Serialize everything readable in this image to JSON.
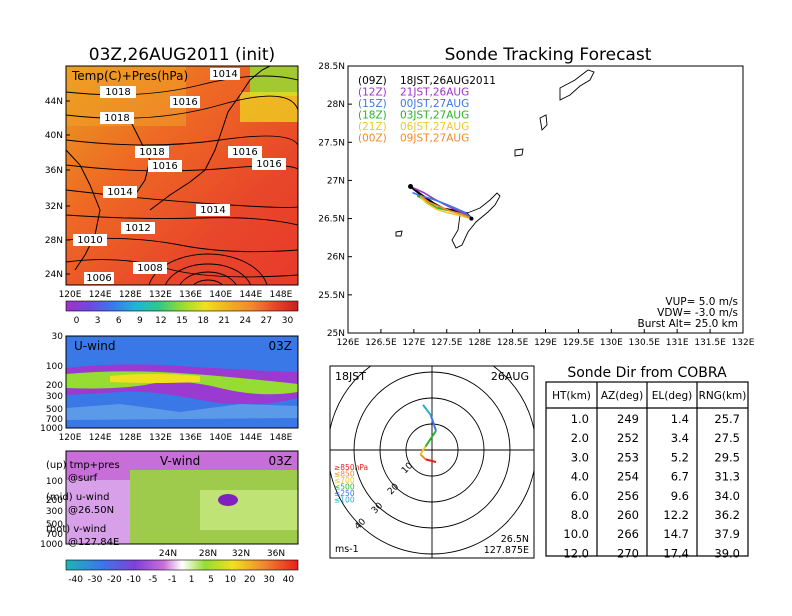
{
  "colors": {
    "warm_1": "#e8a020",
    "warm_2": "#ee6a24",
    "warm_3": "#e8472a",
    "warm_4": "#f08a30",
    "green": "#96dc32",
    "yellow": "#f0e020",
    "blue": "#3a78e8",
    "purple": "#a032c8",
    "magenta": "#c86ed8",
    "cyan": "#20c8c8",
    "red": "#e81e1e",
    "orange": "#f0a028"
  },
  "left": {
    "surface_map": {
      "title": "03Z,26AUG2011 (init)",
      "label": "Temp(C)+Pres(hPa)",
      "lat_ticks": [
        "44N",
        "40N",
        "36N",
        "32N",
        "28N",
        "24N"
      ],
      "lon_ticks": [
        "120E",
        "124E",
        "128E",
        "132E",
        "136E",
        "140E",
        "144E",
        "148E"
      ],
      "isobar_labels": [
        "1014",
        "1018",
        "1016",
        "1018",
        "1018",
        "1016",
        "1016",
        "1016",
        "1014",
        "1014",
        "1012",
        "1010",
        "1008",
        "1006"
      ],
      "colorbar_ticks": [
        "0",
        "3",
        "6",
        "9",
        "12",
        "15",
        "18",
        "21",
        "24",
        "27",
        "30"
      ]
    },
    "u_wind": {
      "label": "U-wind",
      "time": "03Z",
      "p_ticks": [
        "30",
        "100",
        "200",
        "300",
        "500",
        "700",
        "1000"
      ],
      "lon_ticks": [
        "120E",
        "124E",
        "128E",
        "132E",
        "136E",
        "140E",
        "144E",
        "148E"
      ]
    },
    "v_wind": {
      "label": "V-wind",
      "time": "03Z",
      "p_ticks": [
        "100",
        "200",
        "300",
        "500",
        "700",
        "1000"
      ],
      "lat_ticks": [
        "24N",
        "28N",
        "32N",
        "36N"
      ]
    },
    "notes": [
      {
        "line1": "(up) tmp+pres",
        "line2": "@surf"
      },
      {
        "line1": "(mid) u-wind",
        "line2": "@26.50N"
      },
      {
        "line1": "(bot) v-wind",
        "line2": "@127.84E"
      }
    ],
    "wind_colorbar_ticks": [
      "-40",
      "-30",
      "-20",
      "-10",
      "-5",
      "-1",
      "1",
      "5",
      "10",
      "20",
      "30",
      "40"
    ]
  },
  "tracking": {
    "title": "Sonde Tracking Forecast",
    "legend": [
      {
        "code": "(09Z)",
        "text": "18JST,26AUG2011",
        "color": "#000000"
      },
      {
        "code": "(12Z)",
        "text": "21JST,26AUG",
        "color": "#a032c8"
      },
      {
        "code": "(15Z)",
        "text": "00JST,27AUG",
        "color": "#3a78e8"
      },
      {
        "code": "(18Z)",
        "text": "03JST,27AUG",
        "color": "#28b428"
      },
      {
        "code": "(21Z)",
        "text": "06JST,27AUG",
        "color": "#f0c828"
      },
      {
        "code": "(00Z)",
        "text": "09JST,27AUG",
        "color": "#f08a30"
      }
    ],
    "params": [
      "VUP= 5.0 m/s",
      "VDW= -3.0 m/s",
      "Burst Alt= 25.0 km"
    ],
    "lat_ticks": [
      "28.5N",
      "28N",
      "27.5N",
      "27N",
      "26.5N",
      "26N",
      "25.5N",
      "25N"
    ],
    "lon_ticks": [
      "126E",
      "126.5E",
      "127E",
      "127.5E",
      "128E",
      "128.5E",
      "129E",
      "129.5E",
      "130E",
      "130.5E",
      "131E",
      "131.5E",
      "132E"
    ]
  },
  "polar": {
    "time_label": "18JST",
    "date_label": "26AUG",
    "ring_labels": [
      "10",
      "20",
      "30",
      "40"
    ],
    "pressure_levels": [
      {
        "label": "≥850hPa",
        "color": "#e81e1e"
      },
      {
        "label": "≤850",
        "color": "#f08a30"
      },
      {
        "label": "≤700",
        "color": "#f0c828"
      },
      {
        "label": "≤500",
        "color": "#28b428"
      },
      {
        "label": "≤250",
        "color": "#3a78e8"
      },
      {
        "label": "≤100",
        "color": "#20b0c8"
      }
    ],
    "unit": "ms-1",
    "location_lat": "26.5N",
    "location_lon": "127.875E"
  },
  "sonde_dir": {
    "title": "Sonde Dir from COBRA",
    "headers": [
      "HT(km)",
      "AZ(deg)",
      "EL(deg)",
      "RNG(km)"
    ],
    "rows": [
      [
        "1.0",
        "249",
        "1.4",
        "25.7"
      ],
      [
        "2.0",
        "252",
        "3.4",
        "27.5"
      ],
      [
        "3.0",
        "253",
        "5.2",
        "29.5"
      ],
      [
        "4.0",
        "254",
        "6.7",
        "31.3"
      ],
      [
        "6.0",
        "256",
        "9.6",
        "34.0"
      ],
      [
        "8.0",
        "260",
        "12.2",
        "36.2"
      ],
      [
        "10.0",
        "266",
        "14.7",
        "37.9"
      ],
      [
        "12.0",
        "270",
        "17.4",
        "39.0"
      ]
    ]
  },
  "chart_data": [
    {
      "type": "heatmap",
      "title": "03Z,26AUG2011 (init)",
      "subtitle": "Temp(C)+Pres(hPa)",
      "x_ticks": [
        "120E",
        "124E",
        "128E",
        "132E",
        "136E",
        "140E",
        "144E",
        "148E"
      ],
      "y_ticks": [
        "24N",
        "28N",
        "32N",
        "36N",
        "40N",
        "44N"
      ],
      "colorbar": [
        0,
        3,
        6,
        9,
        12,
        15,
        18,
        21,
        24,
        27,
        30
      ],
      "contour_labels_hPa": [
        1014,
        1018,
        1016,
        1018,
        1018,
        1016,
        1016,
        1016,
        1014,
        1014,
        1012,
        1010,
        1008,
        1006
      ]
    },
    {
      "type": "heatmap",
      "title": "U-wind",
      "time": "03Z",
      "x_ticks": [
        "120E",
        "124E",
        "128E",
        "132E",
        "136E",
        "140E",
        "144E",
        "148E"
      ],
      "y_ticks_hPa": [
        30,
        100,
        200,
        300,
        500,
        700,
        1000
      ]
    },
    {
      "type": "heatmap",
      "title": "V-wind",
      "time": "03Z",
      "x_ticks": [
        "24N",
        "28N",
        "32N",
        "36N"
      ],
      "y_ticks_hPa": [
        100,
        200,
        300,
        500,
        700,
        1000
      ],
      "colorbar": [
        -40,
        -30,
        -20,
        -10,
        -5,
        -1,
        1,
        5,
        10,
        20,
        30,
        40
      ]
    },
    {
      "type": "line",
      "title": "Sonde Tracking Forecast",
      "xlim": [
        126,
        132
      ],
      "ylim": [
        25,
        28.5
      ],
      "launch": {
        "lon": 127.875,
        "lat": 26.5
      },
      "series": [
        {
          "name": "(09Z) 18JST,26AUG2011",
          "points": [
            [
              127.875,
              26.5
            ],
            [
              127.8,
              26.57
            ],
            [
              127.65,
              26.6
            ],
            [
              127.45,
              26.63
            ],
            [
              127.3,
              26.7
            ],
            [
              127.1,
              26.82
            ],
            [
              126.95,
              26.92
            ]
          ]
        },
        {
          "name": "(12Z) 21JST,26AUG",
          "points": [
            [
              127.875,
              26.5
            ],
            [
              127.78,
              26.56
            ],
            [
              127.62,
              26.62
            ],
            [
              127.48,
              26.68
            ],
            [
              127.3,
              26.76
            ],
            [
              127.15,
              26.84
            ],
            [
              127.0,
              26.9
            ]
          ]
        },
        {
          "name": "(15Z) 00JST,27AUG",
          "points": [
            [
              127.875,
              26.5
            ],
            [
              127.78,
              26.58
            ],
            [
              127.62,
              26.64
            ],
            [
              127.45,
              26.7
            ],
            [
              127.3,
              26.75
            ],
            [
              127.1,
              26.8
            ],
            [
              126.98,
              26.84
            ]
          ]
        },
        {
          "name": "(18Z) 03JST,27AUG",
          "points": [
            [
              127.875,
              26.5
            ],
            [
              127.75,
              26.55
            ],
            [
              127.55,
              26.6
            ],
            [
              127.35,
              26.64
            ],
            [
              127.2,
              26.72
            ],
            [
              127.05,
              26.8
            ]
          ]
        },
        {
          "name": "(21Z) 06JST,27AUG",
          "points": [
            [
              127.875,
              26.5
            ],
            [
              127.7,
              26.54
            ],
            [
              127.5,
              26.58
            ],
            [
              127.35,
              26.62
            ],
            [
              127.2,
              26.7
            ],
            [
              127.1,
              26.78
            ]
          ]
        },
        {
          "name": "(00Z) 09JST,27AUG",
          "points": [
            [
              127.875,
              26.5
            ],
            [
              127.72,
              26.56
            ],
            [
              127.55,
              26.6
            ],
            [
              127.38,
              26.66
            ],
            [
              127.22,
              26.72
            ],
            [
              127.1,
              26.8
            ]
          ]
        }
      ]
    },
    {
      "type": "polar",
      "title": "18JST 26AUG",
      "rings_ms": [
        10,
        20,
        30,
        40
      ],
      "segments": [
        {
          "level": "≥850hPa",
          "u": -4,
          "v": 1
        },
        {
          "level": "≤850",
          "u": -2,
          "v": 2
        },
        {
          "level": "≤700",
          "u": 2,
          "v": 3
        },
        {
          "level": "≤500",
          "u": 4,
          "v": 6
        },
        {
          "level": "≤250",
          "u": -2,
          "v": 6
        },
        {
          "level": "≤100",
          "u": -3,
          "v": 4
        }
      ]
    },
    {
      "type": "table",
      "title": "Sonde Dir from COBRA",
      "columns": [
        "HT(km)",
        "AZ(deg)",
        "EL(deg)",
        "RNG(km)"
      ],
      "rows": [
        [
          1.0,
          249,
          1.4,
          25.7
        ],
        [
          2.0,
          252,
          3.4,
          27.5
        ],
        [
          3.0,
          253,
          5.2,
          29.5
        ],
        [
          4.0,
          254,
          6.7,
          31.3
        ],
        [
          6.0,
          256,
          9.6,
          34.0
        ],
        [
          8.0,
          260,
          12.2,
          36.2
        ],
        [
          10.0,
          266,
          14.7,
          37.9
        ],
        [
          12.0,
          270,
          17.4,
          39.0
        ]
      ]
    }
  ]
}
